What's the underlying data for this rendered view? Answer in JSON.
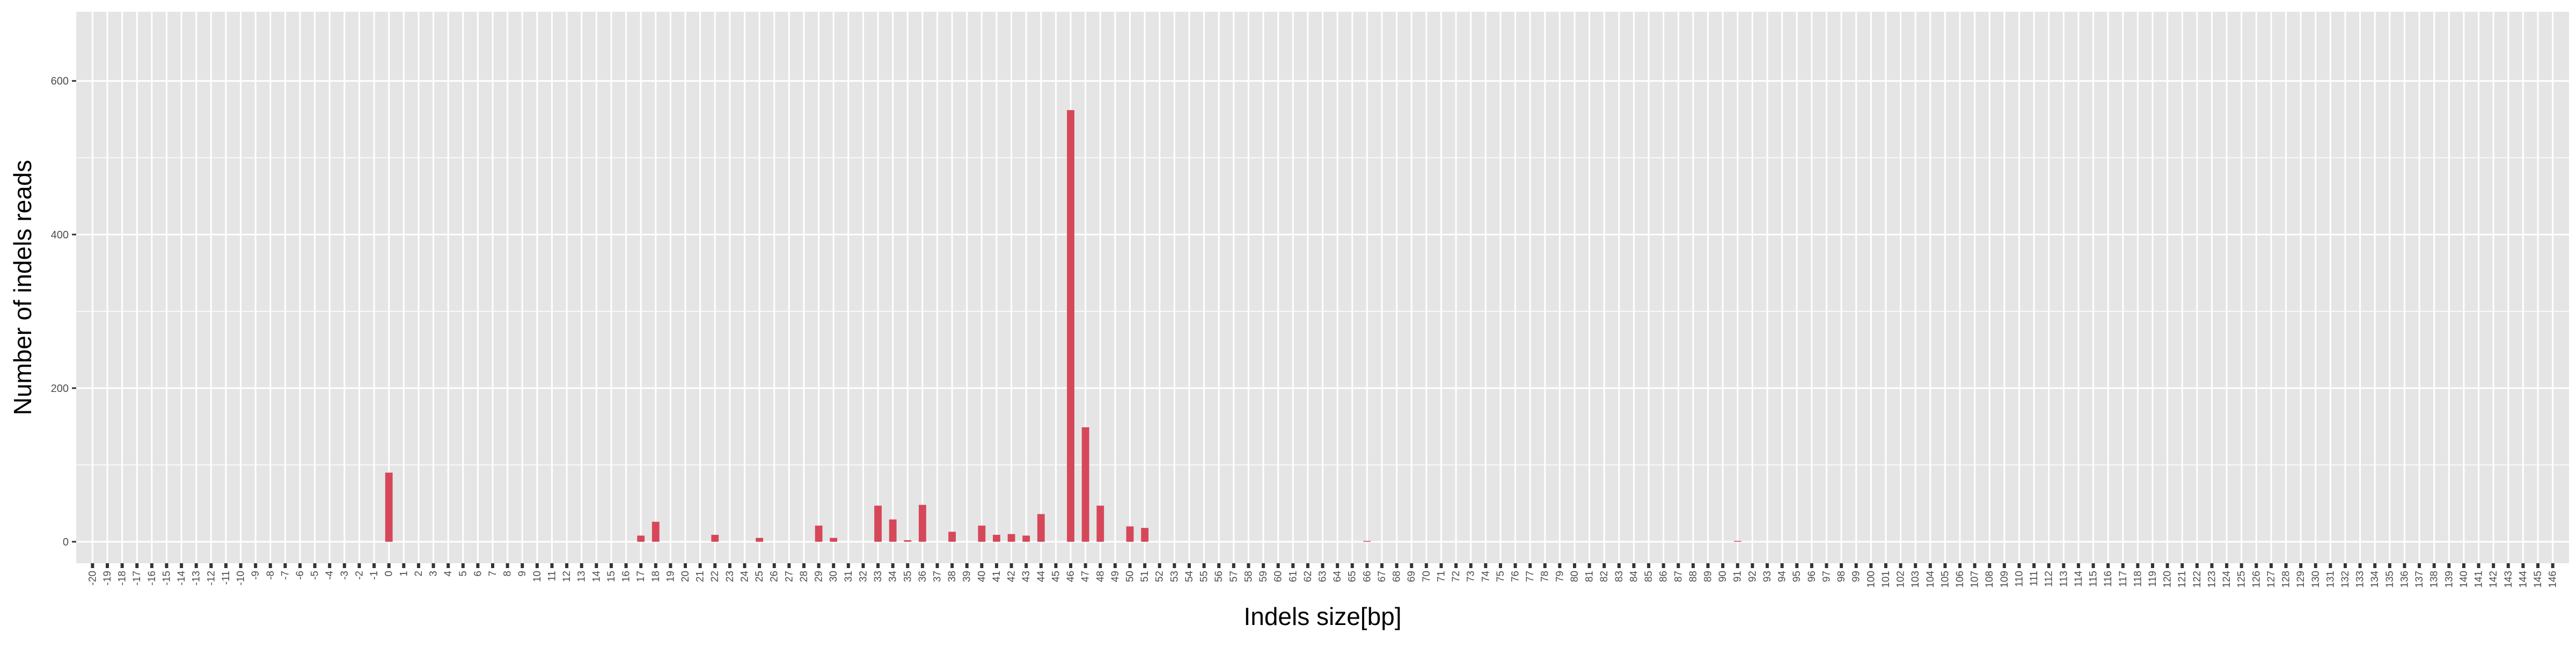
{
  "chart_data": {
    "type": "bar",
    "xlabel": "Indels size[bp]",
    "ylabel": "Number of indels reads",
    "x_range": [
      -20,
      146
    ],
    "ylim": [
      -28,
      690
    ],
    "yticks": [
      0,
      200,
      400,
      600
    ],
    "grid": true,
    "legend": "none",
    "bars": [
      {
        "x": 0,
        "y": 90
      },
      {
        "x": 17,
        "y": 8
      },
      {
        "x": 18,
        "y": 26
      },
      {
        "x": 22,
        "y": 9
      },
      {
        "x": 25,
        "y": 5
      },
      {
        "x": 29,
        "y": 21
      },
      {
        "x": 30,
        "y": 5
      },
      {
        "x": 33,
        "y": 47
      },
      {
        "x": 34,
        "y": 29
      },
      {
        "x": 35,
        "y": 2
      },
      {
        "x": 36,
        "y": 48
      },
      {
        "x": 38,
        "y": 13
      },
      {
        "x": 40,
        "y": 21
      },
      {
        "x": 41,
        "y": 9
      },
      {
        "x": 42,
        "y": 10
      },
      {
        "x": 43,
        "y": 8
      },
      {
        "x": 44,
        "y": 36
      },
      {
        "x": 46,
        "y": 562
      },
      {
        "x": 47,
        "y": 149
      },
      {
        "x": 48,
        "y": 47
      },
      {
        "x": 50,
        "y": 20
      },
      {
        "x": 51,
        "y": 18
      },
      {
        "x": 66,
        "y": 1
      },
      {
        "x": 91,
        "y": 1
      }
    ]
  },
  "colors": {
    "bar": "#d6475a",
    "panel_background": "#e5e5e5",
    "grid_line": "#ffffff",
    "tick_label": "#4d4d4d",
    "axis_title": "#000000"
  }
}
